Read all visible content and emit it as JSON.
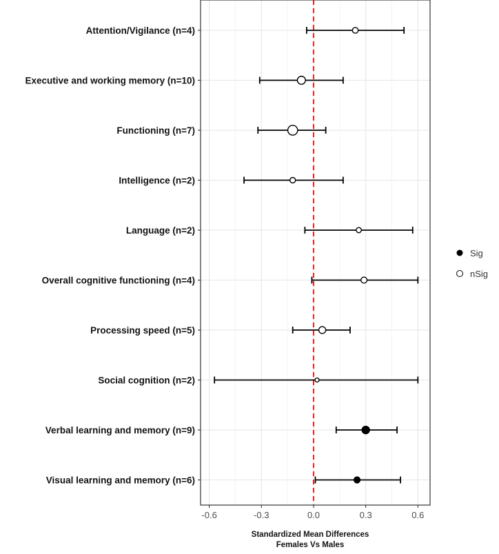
{
  "chart_data": {
    "type": "scatter",
    "subtype": "forest-plot",
    "title": "",
    "xlabel": [
      "Standardized Mean Differences",
      "Females Vs Males"
    ],
    "ylabel": "",
    "xlim": [
      -0.65,
      0.67
    ],
    "xticks": [
      -0.6,
      -0.3,
      0.0,
      0.3,
      0.6
    ],
    "xtick_labels": [
      "-0.6",
      "-0.3",
      "0.0",
      "0.3",
      "0.6"
    ],
    "reference_line": {
      "x": 0,
      "style": "dashed",
      "color": "#e8201c"
    },
    "grid": true,
    "legend": {
      "placement": "right",
      "entries": [
        {
          "label": "Sig",
          "marker": "filled-circle"
        },
        {
          "label": "nSig",
          "marker": "open-circle"
        }
      ]
    },
    "categories": [
      "Attention/Vigilance (n=4)",
      "Executive and working memory (n=10)",
      "Functioning (n=7)",
      "Intelligence (n=2)",
      "Language (n=2)",
      "Overall cognitive functioning (n=4)",
      "Processing speed (n=5)",
      "Social cognition (n=2)",
      "Verbal learning and memory (n=9)",
      "Visual learning and memory (n=6)"
    ],
    "estimates": [
      0.24,
      -0.07,
      -0.12,
      -0.12,
      0.26,
      0.29,
      0.05,
      0.02,
      0.3,
      0.25
    ],
    "ci_lower": [
      -0.04,
      -0.31,
      -0.32,
      -0.4,
      -0.05,
      -0.01,
      -0.12,
      -0.57,
      0.13,
      0.01
    ],
    "ci_upper": [
      0.52,
      0.17,
      0.07,
      0.17,
      0.57,
      0.6,
      0.21,
      0.6,
      0.48,
      0.5
    ],
    "significance": [
      "nSig",
      "nSig",
      "nSig",
      "nSig",
      "nSig",
      "nSig",
      "nSig",
      "nSig",
      "Sig",
      "Sig"
    ],
    "point_weights": [
      2.0,
      2.8,
      3.4,
      1.9,
      1.8,
      2.1,
      2.4,
      1.4,
      2.7,
      2.2
    ]
  }
}
